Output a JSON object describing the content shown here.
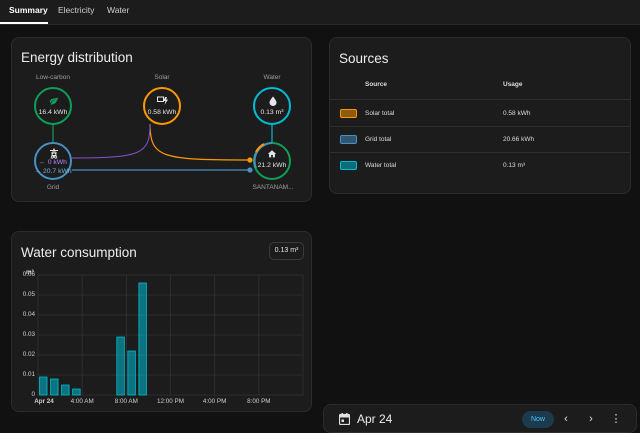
{
  "tabs": [
    {
      "label": "Summary",
      "active": true
    },
    {
      "label": "Electricity",
      "active": false
    },
    {
      "label": "Water",
      "active": false
    }
  ],
  "distribution": {
    "title": "Energy distribution",
    "low_carbon": {
      "label": "Low-carbon",
      "value": "16.4 kWh",
      "icon": "leaf-icon",
      "color": "#0f9d58"
    },
    "solar": {
      "label": "Solar",
      "value": "0.58 kWh",
      "icon": "solar-power-icon",
      "color": "#ff9800"
    },
    "water": {
      "label": "Water",
      "value": "0.13 m³",
      "icon": "water-drop-icon",
      "color": "#00bcd4"
    },
    "grid": {
      "label": "Grid",
      "value_in": "← 0 kWh",
      "value_out": "→ 20.7 kWh",
      "icon": "transmission-tower-icon",
      "color": "#488fc2",
      "return_color": "#8353d1"
    },
    "home": {
      "label": "SANTANAM...",
      "value": "21.2 kWh",
      "icon": "home-icon"
    }
  },
  "sources": {
    "title": "Sources",
    "headers": {
      "source": "Source",
      "usage": "Usage"
    },
    "rows": [
      {
        "name": "Solar total",
        "usage": "0.58 kWh",
        "color": "#ff9800"
      },
      {
        "name": "Grid total",
        "usage": "20.66 kWh",
        "color": "#488fc2"
      },
      {
        "name": "Water total",
        "usage": "0.13 m³",
        "color": "#00bcd4"
      }
    ]
  },
  "water_chart_card": {
    "title": "Water consumption",
    "total_badge": "0.13 m³"
  },
  "chart_data": {
    "type": "bar",
    "ylabel": "m³",
    "ylim": [
      0,
      0.06
    ],
    "yticks": [
      "0",
      "0.01",
      "0.02",
      "0.03",
      "0.04",
      "0.05",
      "0.06"
    ],
    "xticks": [
      "Apr 24",
      "4:00 AM",
      "8:00 AM",
      "12:00 PM",
      "4:00 PM",
      "8:00 PM"
    ],
    "categories": [
      "0:00",
      "1:00",
      "2:00",
      "3:00",
      "4:00",
      "5:00",
      "6:00",
      "7:00",
      "8:00",
      "9:00",
      "10:00",
      "11:00",
      "12:00",
      "13:00",
      "14:00",
      "15:00",
      "16:00",
      "17:00",
      "18:00",
      "19:00",
      "20:00",
      "21:00",
      "22:00",
      "23:00"
    ],
    "values": [
      0.009,
      0.008,
      0.005,
      0.003,
      0,
      0,
      0,
      0.029,
      0.022,
      0.056,
      0,
      0,
      0,
      0,
      0,
      0,
      0,
      0,
      0,
      0,
      0,
      0,
      0,
      0
    ],
    "color": "#00bcd4"
  },
  "datebar": {
    "date": "Apr 24",
    "now_label": "Now",
    "icons": [
      "calendar-icon",
      "chevron-left-icon",
      "chevron-right-icon",
      "more-vertical-icon"
    ]
  }
}
